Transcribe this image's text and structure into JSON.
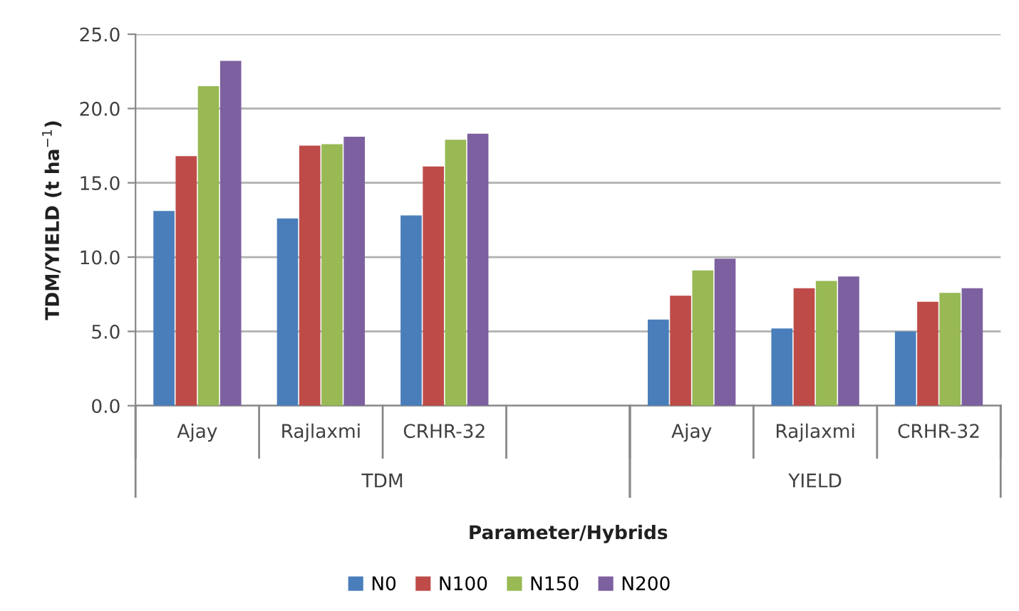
{
  "chart_data": {
    "type": "bar",
    "categories": [
      "Ajay",
      "Rajlaxmi",
      "CRHR-32",
      null,
      "Ajay",
      "Rajlaxmi",
      "CRHR-32"
    ],
    "series": [
      {
        "name": "N0",
        "color": "#4a7ebb",
        "values": [
          13.1,
          12.6,
          12.8,
          null,
          5.8,
          5.2,
          5.0
        ]
      },
      {
        "name": "N100",
        "color": "#be4b48",
        "values": [
          16.8,
          17.5,
          16.1,
          null,
          7.4,
          7.9,
          7.0
        ]
      },
      {
        "name": "N150",
        "color": "#98b954",
        "values": [
          21.5,
          17.6,
          17.9,
          null,
          9.1,
          8.4,
          7.6
        ]
      },
      {
        "name": "N200",
        "color": "#7d60a0",
        "values": [
          23.2,
          18.1,
          18.3,
          null,
          9.9,
          8.7,
          7.9
        ]
      }
    ],
    "xlabel": "Parameter/Hybrids",
    "ylabel": "TDM/YIELD (t ha$^{−1}$)",
    "annotations": [
      "TDM",
      "YIELD"
    ],
    "ylim": [
      0,
      25
    ],
    "yticks": [
      {
        "value": 0,
        "label": "0.0"
      },
      {
        "value": 5,
        "label": "5.0"
      },
      {
        "value": 10,
        "label": "10.0"
      },
      {
        "value": 15,
        "label": "15.0"
      },
      {
        "value": 20,
        "label": "20.0"
      },
      {
        "value": 25,
        "label": "25.0"
      }
    ],
    "grid": "y",
    "legend": "bottom"
  }
}
